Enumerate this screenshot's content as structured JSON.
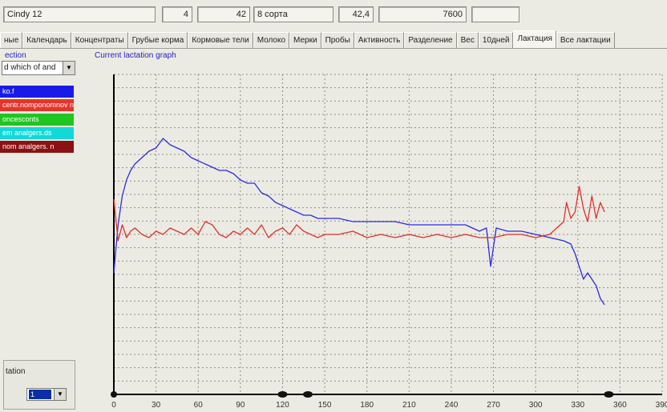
{
  "infobar": {
    "cow_name": "Cindy 12",
    "field_1": "4",
    "field_2": "42",
    "field_3": "8 сорта",
    "field_4": "42,4",
    "field_5": "7600",
    "field_6": ""
  },
  "tabs": [
    {
      "label": "ные"
    },
    {
      "label": "Календарь"
    },
    {
      "label": "Концентраты"
    },
    {
      "label": "Грубые корма"
    },
    {
      "label": "Кормовые тели"
    },
    {
      "label": "Молоко"
    },
    {
      "label": "Мерки"
    },
    {
      "label": "Пробы"
    },
    {
      "label": "Активность"
    },
    {
      "label": "Разделение"
    },
    {
      "label": "Вес"
    },
    {
      "label": "10дней"
    },
    {
      "label": "Лактация"
    },
    {
      "label": "Все лактации"
    }
  ],
  "active_tab": "Лактация",
  "left": {
    "section_label": "ection",
    "combo_value": "d which of and",
    "series_items": [
      {
        "label": "ko.f",
        "color": "#1a1ae8"
      },
      {
        "label": "centr.nomponomnov n",
        "color": "#e5352b"
      },
      {
        "label": "oncesconts",
        "color": "#21c421"
      },
      {
        "label": "em analgers.ds",
        "color": "#12d9d9"
      },
      {
        "label": "nom analgers. n",
        "color": "#8b1212"
      }
    ],
    "status_label": "tation",
    "status_value": "1"
  },
  "chart_data": {
    "type": "line",
    "title": "Current lactation graph",
    "xlabel": "",
    "ylabel": "",
    "xlim": [
      0,
      390
    ],
    "xticks": [
      0,
      30,
      60,
      90,
      120,
      150,
      180,
      210,
      240,
      270,
      300,
      330,
      360,
      390
    ],
    "ylim": [
      0,
      100
    ],
    "grid": true,
    "series": [
      {
        "color": "#2b2be6",
        "x": [
          0,
          3,
          6,
          9,
          12,
          15,
          20,
          25,
          30,
          35,
          40,
          45,
          50,
          55,
          60,
          65,
          70,
          75,
          80,
          85,
          90,
          95,
          100,
          105,
          110,
          115,
          120,
          125,
          130,
          135,
          140,
          145,
          150,
          160,
          170,
          180,
          190,
          200,
          210,
          220,
          230,
          240,
          250,
          260,
          265,
          268,
          272,
          280,
          290,
          300,
          310,
          320,
          325,
          328,
          331,
          334,
          337,
          340,
          343,
          346,
          349
        ],
        "values": [
          38,
          53,
          62,
          67,
          70,
          72,
          74,
          76,
          77,
          80,
          78,
          77,
          76,
          74,
          73,
          72,
          71,
          70,
          70,
          69,
          67,
          66,
          66,
          63,
          62,
          60,
          59,
          58,
          57,
          56,
          56,
          55,
          55,
          55,
          54,
          54,
          54,
          54,
          53,
          53,
          53,
          53,
          53,
          51,
          52,
          40,
          52,
          51,
          51,
          50,
          49,
          48,
          47,
          44,
          40,
          36,
          38,
          36,
          34,
          30,
          28
        ]
      },
      {
        "color": "#e0302a",
        "x": [
          0,
          3,
          6,
          9,
          12,
          15,
          20,
          25,
          30,
          35,
          40,
          45,
          50,
          55,
          60,
          65,
          70,
          75,
          80,
          85,
          90,
          95,
          100,
          105,
          110,
          115,
          120,
          125,
          130,
          135,
          140,
          145,
          150,
          160,
          170,
          180,
          190,
          200,
          210,
          220,
          230,
          240,
          250,
          260,
          270,
          280,
          290,
          300,
          310,
          320,
          322,
          325,
          328,
          331,
          334,
          337,
          340,
          343,
          346,
          349
        ],
        "values": [
          61,
          48,
          53,
          49,
          51,
          52,
          50,
          49,
          51,
          50,
          52,
          51,
          50,
          52,
          50,
          54,
          53,
          50,
          49,
          51,
          50,
          52,
          50,
          53,
          49,
          51,
          52,
          50,
          53,
          51,
          50,
          49,
          50,
          50,
          51,
          49,
          50,
          49,
          50,
          49,
          50,
          49,
          50,
          49,
          49,
          50,
          50,
          49,
          50,
          54,
          60,
          55,
          57,
          65,
          58,
          54,
          62,
          55,
          60,
          57
        ]
      }
    ],
    "markers_x": [
      0,
      120,
      138,
      352
    ]
  }
}
